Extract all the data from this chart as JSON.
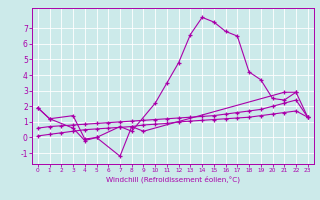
{
  "bg_color": "#cceaea",
  "line_color": "#aa00aa",
  "grid_color": "#ffffff",
  "xlabel": "Windchill (Refroidissement éolien,°C)",
  "xlim": [
    -0.5,
    23.5
  ],
  "ylim": [
    -1.7,
    8.3
  ],
  "xticks": [
    0,
    1,
    2,
    3,
    4,
    5,
    6,
    7,
    8,
    9,
    10,
    11,
    12,
    13,
    14,
    15,
    16,
    17,
    18,
    19,
    20,
    21,
    22,
    23
  ],
  "yticks": [
    -1,
    0,
    1,
    2,
    3,
    4,
    5,
    6,
    7
  ],
  "s0x": [
    0,
    1,
    3,
    4,
    5,
    7,
    8,
    9,
    21,
    22
  ],
  "s0y": [
    1.9,
    1.2,
    1.4,
    -0.1,
    0.0,
    -1.2,
    0.7,
    0.4,
    2.9,
    2.9
  ],
  "s1x": [
    0,
    1,
    3,
    4,
    5,
    7,
    8,
    10,
    11,
    12,
    13,
    14,
    15,
    16,
    17,
    18,
    19,
    20,
    21,
    22,
    23
  ],
  "s1y": [
    1.9,
    1.2,
    0.6,
    -0.2,
    0.0,
    0.7,
    0.4,
    2.2,
    3.5,
    4.8,
    6.6,
    7.7,
    7.4,
    6.8,
    6.5,
    4.2,
    3.7,
    2.5,
    2.4,
    2.9,
    1.3
  ],
  "s2x": [
    0,
    1,
    2,
    3,
    4,
    5,
    6,
    7,
    8,
    9,
    10,
    11,
    12,
    13,
    14,
    15,
    16,
    17,
    18,
    19,
    20,
    21,
    22,
    23
  ],
  "s2y": [
    0.1,
    0.2,
    0.3,
    0.4,
    0.5,
    0.55,
    0.6,
    0.65,
    0.7,
    0.8,
    0.85,
    0.9,
    1.0,
    1.05,
    1.1,
    1.15,
    1.2,
    1.25,
    1.3,
    1.4,
    1.5,
    1.6,
    1.7,
    1.3
  ],
  "s3x": [
    0,
    1,
    2,
    3,
    4,
    5,
    6,
    7,
    8,
    9,
    10,
    11,
    12,
    13,
    14,
    15,
    16,
    17,
    18,
    19,
    20,
    21,
    22,
    23
  ],
  "s3y": [
    0.6,
    0.7,
    0.75,
    0.8,
    0.85,
    0.9,
    0.95,
    1.0,
    1.05,
    1.1,
    1.15,
    1.2,
    1.25,
    1.3,
    1.35,
    1.4,
    1.5,
    1.6,
    1.7,
    1.8,
    2.0,
    2.2,
    2.4,
    1.3
  ]
}
